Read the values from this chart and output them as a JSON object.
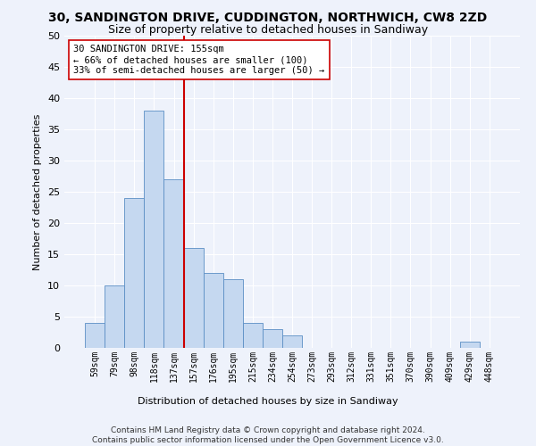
{
  "title": "30, SANDINGTON DRIVE, CUDDINGTON, NORTHWICH, CW8 2ZD",
  "subtitle": "Size of property relative to detached houses in Sandiway",
  "xlabel": "Distribution of detached houses by size in Sandiway",
  "ylabel": "Number of detached properties",
  "bar_values": [
    4,
    10,
    24,
    38,
    27,
    16,
    12,
    11,
    4,
    3,
    2,
    0,
    0,
    0,
    0,
    0,
    0,
    0,
    0,
    1,
    0
  ],
  "bin_labels": [
    "59sqm",
    "79sqm",
    "98sqm",
    "118sqm",
    "137sqm",
    "157sqm",
    "176sqm",
    "195sqm",
    "215sqm",
    "234sqm",
    "254sqm",
    "273sqm",
    "293sqm",
    "312sqm",
    "331sqm",
    "351sqm",
    "370sqm",
    "390sqm",
    "409sqm",
    "429sqm",
    "448sqm"
  ],
  "bar_color": "#c5d8f0",
  "bar_edge_color": "#5b8ec4",
  "vline_color": "#cc0000",
  "annotation_text": "30 SANDINGTON DRIVE: 155sqm\n← 66% of detached houses are smaller (100)\n33% of semi-detached houses are larger (50) →",
  "annotation_box_color": "#ffffff",
  "annotation_box_edge": "#cc0000",
  "ylim": [
    0,
    50
  ],
  "yticks": [
    0,
    5,
    10,
    15,
    20,
    25,
    30,
    35,
    40,
    45,
    50
  ],
  "footer_text": "Contains HM Land Registry data © Crown copyright and database right 2024.\nContains public sector information licensed under the Open Government Licence v3.0.",
  "background_color": "#eef2fb",
  "grid_color": "#ffffff",
  "title_fontsize": 10,
  "subtitle_fontsize": 9,
  "footer_fontsize": 6.5
}
